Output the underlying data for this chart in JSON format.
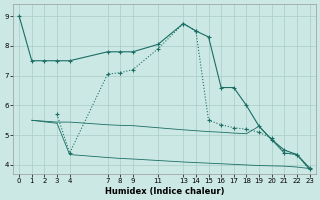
{
  "xlabel": "Humidex (Indice chaleur)",
  "bg_color": "#cce8e4",
  "line_color": "#1a6e64",
  "grid_color": "#aaccc8",
  "ylim": [
    3.7,
    9.4
  ],
  "xlim": [
    -0.5,
    23.5
  ],
  "yticks": [
    4,
    5,
    6,
    7,
    8,
    9
  ],
  "xticks": [
    0,
    1,
    2,
    3,
    4,
    7,
    8,
    9,
    11,
    13,
    14,
    15,
    16,
    17,
    18,
    19,
    20,
    21,
    22,
    23
  ],
  "line1_x": [
    0,
    1,
    2,
    3,
    4,
    7,
    8,
    9,
    11,
    13,
    14,
    15,
    16,
    17,
    18,
    19,
    20,
    21,
    22,
    23
  ],
  "line1_y": [
    9.0,
    7.5,
    7.5,
    7.5,
    7.5,
    7.8,
    7.8,
    7.8,
    8.05,
    8.75,
    8.5,
    8.3,
    6.6,
    6.6,
    6.0,
    5.3,
    4.85,
    4.5,
    4.35,
    3.9
  ],
  "line2_x": [
    3,
    4,
    7,
    8,
    9,
    11,
    13,
    14,
    15,
    16,
    17,
    18,
    19,
    20,
    21,
    22,
    23
  ],
  "line2_y": [
    5.7,
    4.4,
    7.05,
    7.1,
    7.2,
    7.9,
    8.75,
    8.5,
    5.5,
    5.35,
    5.25,
    5.2,
    5.1,
    4.9,
    4.4,
    4.35,
    3.85
  ],
  "line3_x": [
    1,
    2,
    3,
    4,
    7,
    8,
    9,
    11,
    13,
    14,
    15,
    16,
    17,
    18,
    19,
    20,
    21,
    22,
    23
  ],
  "line3_y": [
    5.5,
    5.47,
    5.44,
    5.44,
    5.35,
    5.33,
    5.32,
    5.25,
    5.18,
    5.15,
    5.12,
    5.1,
    5.07,
    5.05,
    5.3,
    4.85,
    4.4,
    4.35,
    3.85
  ],
  "line4_x": [
    1,
    2,
    3,
    4,
    7,
    8,
    9,
    11,
    13,
    14,
    15,
    16,
    17,
    18,
    19,
    20,
    21,
    22,
    23
  ],
  "line4_y": [
    5.5,
    5.45,
    5.4,
    4.35,
    4.25,
    4.22,
    4.2,
    4.15,
    4.1,
    4.08,
    4.06,
    4.04,
    4.02,
    4.0,
    3.98,
    3.97,
    3.96,
    3.93,
    3.88
  ]
}
